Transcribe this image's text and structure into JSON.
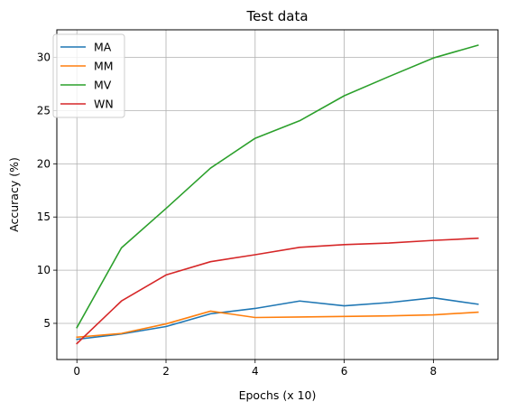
{
  "chart_data": {
    "type": "line",
    "title": "Test data",
    "xlabel": "Epochs (x 10)",
    "ylabel": "Accuracy (%)",
    "x": [
      0,
      1,
      2,
      3,
      4,
      5,
      6,
      7,
      8,
      9
    ],
    "xlim": [
      -0.45,
      9.45
    ],
    "ylim": [
      1.6,
      32.6
    ],
    "xticks": [
      0,
      2,
      4,
      6,
      8
    ],
    "xtick_labels": [
      "0",
      "2",
      "4",
      "6",
      "8"
    ],
    "yticks": [
      5,
      10,
      15,
      20,
      25,
      30
    ],
    "ytick_labels": [
      "5",
      "10",
      "15",
      "20",
      "25",
      "30"
    ],
    "grid": true,
    "legend_position": "top-left",
    "series": [
      {
        "name": "MA",
        "color": "#1f77b4",
        "values": [
          3.5,
          4.0,
          4.7,
          5.9,
          6.4,
          7.1,
          6.65,
          6.95,
          7.4,
          6.8
        ]
      },
      {
        "name": "MM",
        "color": "#ff7f0e",
        "values": [
          3.7,
          4.05,
          4.95,
          6.15,
          5.55,
          5.6,
          5.65,
          5.7,
          5.8,
          6.05
        ]
      },
      {
        "name": "MV",
        "color": "#2ca02c",
        "values": [
          4.6,
          12.1,
          15.8,
          19.6,
          22.4,
          24.05,
          26.4,
          28.2,
          29.95,
          31.15
        ]
      },
      {
        "name": "WN",
        "color": "#d62728",
        "values": [
          3.1,
          7.1,
          9.55,
          10.8,
          11.45,
          12.15,
          12.4,
          12.55,
          12.8,
          13.0
        ]
      }
    ]
  }
}
